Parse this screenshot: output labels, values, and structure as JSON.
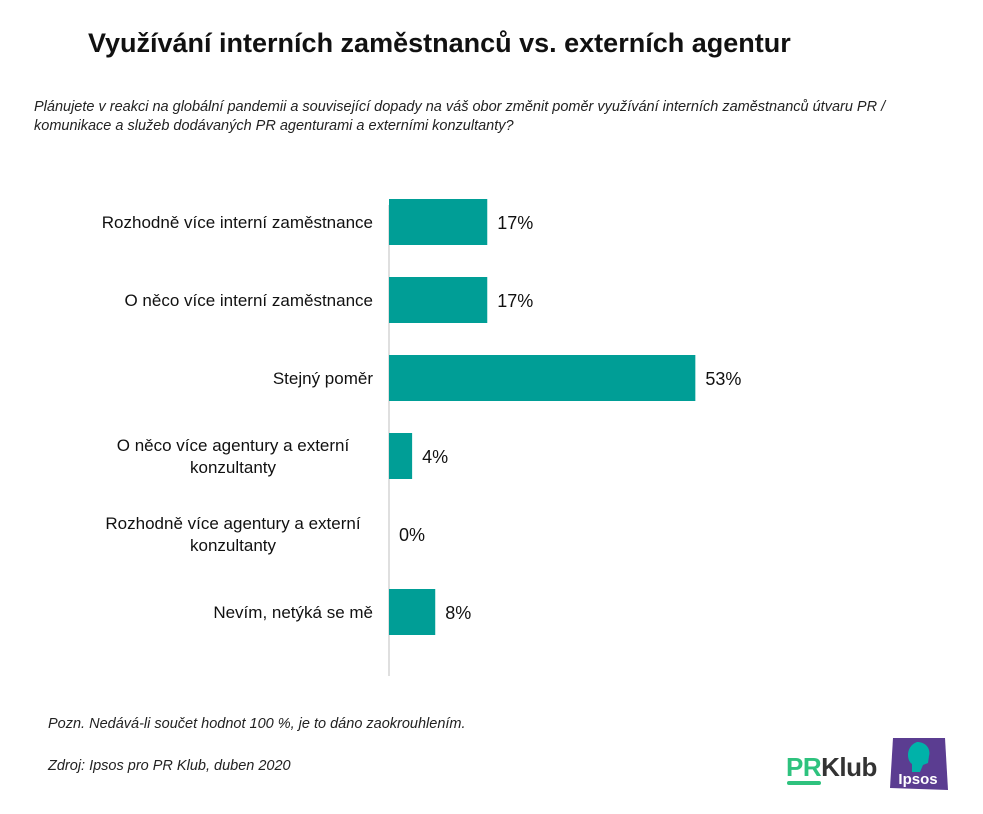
{
  "title": "Využívání interních zaměstnanců vs. externích agentur",
  "question": "Plánujete v reakci na globální pandemii a související dopady na váš obor změnit poměr využívání interních zaměstnanců útvaru PR / komunikace a služeb dodávaných PR agenturami a externími konzultanty?",
  "note": "Pozn. Nedává-li součet hodnot 100 %, je to dáno zaokrouhlením.",
  "source": "Zdroj: Ipsos pro PR Klub, duben 2020",
  "logos": {
    "prklub_pr": "PR",
    "prklub_klub": "Klub",
    "ipsos": "Ipsos"
  },
  "colors": {
    "bar": "#009e96",
    "prklub_green": "#2ec27e",
    "ipsos_purple": "#5b3d91",
    "ipsos_teal": "#00b2a9"
  },
  "chart_data": {
    "type": "bar",
    "orientation": "horizontal",
    "categories": [
      [
        "Rozhodně více  interní zaměstnance"
      ],
      [
        "O něco více interní zaměstnance"
      ],
      [
        "Stejný poměr"
      ],
      [
        "O něco více agentury a externí",
        "konzultanty"
      ],
      [
        "Rozhodně více agentury a externí",
        "konzultanty"
      ],
      [
        "Nevím, netýká se mě"
      ]
    ],
    "values": [
      17,
      17,
      53,
      4,
      0,
      8
    ],
    "value_labels": [
      "17%",
      "17%",
      "53%",
      "4%",
      "0%",
      "8%"
    ],
    "unit": "%",
    "xlim": [
      0,
      60
    ],
    "grid": false,
    "legend": "none"
  }
}
